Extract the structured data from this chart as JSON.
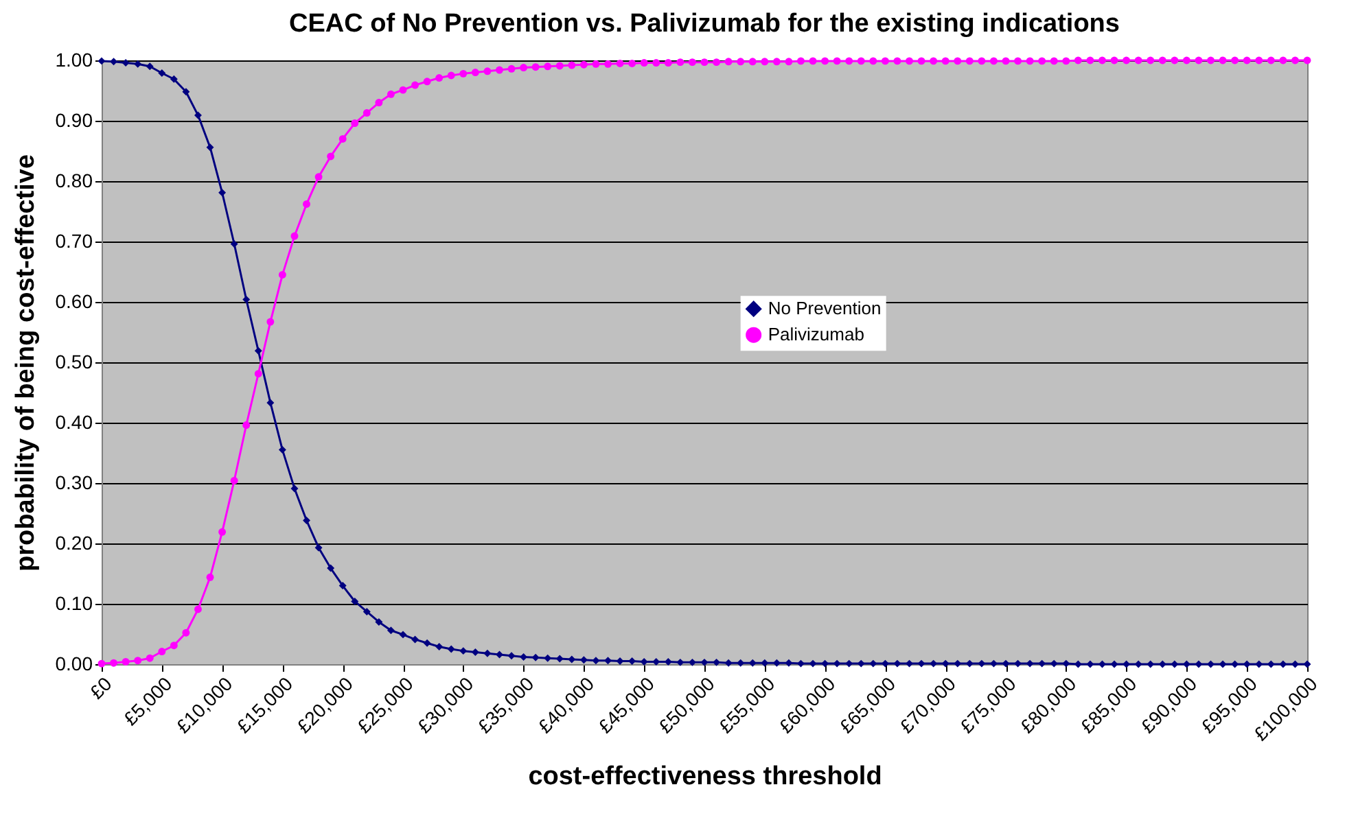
{
  "chart_data": {
    "type": "line",
    "title": "CEAC of No Prevention vs. Palivizumab for the existing indications",
    "xlabel": "cost-effectiveness threshold",
    "ylabel": "probability of being cost-effective",
    "x": [
      0,
      1000,
      2000,
      3000,
      4000,
      5000,
      6000,
      7000,
      8000,
      9000,
      10000,
      11000,
      12000,
      13000,
      14000,
      15000,
      16000,
      17000,
      18000,
      19000,
      20000,
      21000,
      22000,
      23000,
      24000,
      25000,
      26000,
      27000,
      28000,
      29000,
      30000,
      31000,
      32000,
      33000,
      34000,
      35000,
      36000,
      37000,
      38000,
      39000,
      40000,
      41000,
      42000,
      43000,
      44000,
      45000,
      46000,
      47000,
      48000,
      49000,
      50000,
      51000,
      52000,
      53000,
      54000,
      55000,
      56000,
      57000,
      58000,
      59000,
      60000,
      61000,
      62000,
      63000,
      64000,
      65000,
      66000,
      67000,
      68000,
      69000,
      70000,
      71000,
      72000,
      73000,
      74000,
      75000,
      76000,
      77000,
      78000,
      79000,
      80000,
      81000,
      82000,
      83000,
      84000,
      85000,
      86000,
      87000,
      88000,
      89000,
      90000,
      91000,
      92000,
      93000,
      94000,
      95000,
      96000,
      97000,
      98000,
      99000,
      100000
    ],
    "series": [
      {
        "name": "No Prevention",
        "color": "#000080",
        "marker": "diamond",
        "values": [
          0.999,
          0.998,
          0.996,
          0.994,
          0.99,
          0.979,
          0.969,
          0.948,
          0.909,
          0.856,
          0.781,
          0.696,
          0.604,
          0.519,
          0.433,
          0.355,
          0.291,
          0.238,
          0.193,
          0.159,
          0.13,
          0.104,
          0.087,
          0.07,
          0.056,
          0.049,
          0.041,
          0.035,
          0.029,
          0.025,
          0.022,
          0.02,
          0.018,
          0.016,
          0.014,
          0.012,
          0.011,
          0.01,
          0.009,
          0.008,
          0.007,
          0.006,
          0.006,
          0.005,
          0.005,
          0.004,
          0.004,
          0.004,
          0.003,
          0.003,
          0.003,
          0.003,
          0.002,
          0.002,
          0.002,
          0.002,
          0.002,
          0.002,
          0.001,
          0.001,
          0.001,
          0.001,
          0.001,
          0.001,
          0.001,
          0.001,
          0.001,
          0.001,
          0.001,
          0.001,
          0.001,
          0.001,
          0.001,
          0.001,
          0.001,
          0.001,
          0.001,
          0.001,
          0.001,
          0.001,
          0.001,
          0,
          0,
          0,
          0,
          0,
          0,
          0,
          0,
          0,
          0,
          0,
          0,
          0,
          0,
          0,
          0,
          0,
          0,
          0,
          0
        ]
      },
      {
        "name": "Palivizumab",
        "color": "#ff00ff",
        "marker": "circle",
        "values": [
          0.001,
          0.002,
          0.004,
          0.006,
          0.01,
          0.021,
          0.031,
          0.052,
          0.091,
          0.144,
          0.219,
          0.304,
          0.396,
          0.481,
          0.567,
          0.645,
          0.709,
          0.762,
          0.807,
          0.841,
          0.87,
          0.896,
          0.913,
          0.93,
          0.944,
          0.951,
          0.959,
          0.965,
          0.971,
          0.975,
          0.978,
          0.98,
          0.982,
          0.984,
          0.986,
          0.988,
          0.989,
          0.99,
          0.991,
          0.992,
          0.993,
          0.994,
          0.994,
          0.995,
          0.995,
          0.996,
          0.996,
          0.996,
          0.997,
          0.997,
          0.997,
          0.997,
          0.998,
          0.998,
          0.998,
          0.998,
          0.998,
          0.998,
          0.999,
          0.999,
          0.999,
          0.999,
          0.999,
          0.999,
          0.999,
          0.999,
          0.999,
          0.999,
          0.999,
          0.999,
          0.999,
          0.999,
          0.999,
          0.999,
          0.999,
          0.999,
          0.999,
          0.999,
          0.999,
          0.999,
          0.999,
          1,
          1,
          1,
          1,
          1,
          1,
          1,
          1,
          1,
          1,
          1,
          1,
          1,
          1,
          1,
          1,
          1,
          1,
          1,
          1
        ]
      }
    ],
    "xlim": [
      0,
      100000
    ],
    "xticks": [
      {
        "value": 0,
        "label": "£0"
      },
      {
        "value": 5000,
        "label": "£5,000"
      },
      {
        "value": 10000,
        "label": "£10,000"
      },
      {
        "value": 15000,
        "label": "£15,000"
      },
      {
        "value": 20000,
        "label": "£20,000"
      },
      {
        "value": 25000,
        "label": "£25,000"
      },
      {
        "value": 30000,
        "label": "£30,000"
      },
      {
        "value": 35000,
        "label": "£35,000"
      },
      {
        "value": 40000,
        "label": "£40,000"
      },
      {
        "value": 45000,
        "label": "£45,000"
      },
      {
        "value": 50000,
        "label": "£50,000"
      },
      {
        "value": 55000,
        "label": "£55,000"
      },
      {
        "value": 60000,
        "label": "£60,000"
      },
      {
        "value": 65000,
        "label": "£65,000"
      },
      {
        "value": 70000,
        "label": "£70,000"
      },
      {
        "value": 75000,
        "label": "£75,000"
      },
      {
        "value": 80000,
        "label": "£80,000"
      },
      {
        "value": 85000,
        "label": "£85,000"
      },
      {
        "value": 90000,
        "label": "£90,000"
      },
      {
        "value": 95000,
        "label": "£95,000"
      },
      {
        "value": 100000,
        "label": "£100,000"
      }
    ],
    "ylim": [
      0,
      1
    ],
    "yticks": [
      {
        "value": 0,
        "label": "0.00"
      },
      {
        "value": 0.1,
        "label": "0.10"
      },
      {
        "value": 0.2,
        "label": "0.20"
      },
      {
        "value": 0.3,
        "label": "0.30"
      },
      {
        "value": 0.4,
        "label": "0.40"
      },
      {
        "value": 0.5,
        "label": "0.50"
      },
      {
        "value": 0.6,
        "label": "0.60"
      },
      {
        "value": 0.7,
        "label": "0.70"
      },
      {
        "value": 0.8,
        "label": "0.80"
      },
      {
        "value": 0.9,
        "label": "0.90"
      },
      {
        "value": 1,
        "label": "1.00"
      }
    ],
    "grid": "y",
    "legend": "center",
    "line_style": "solid"
  }
}
